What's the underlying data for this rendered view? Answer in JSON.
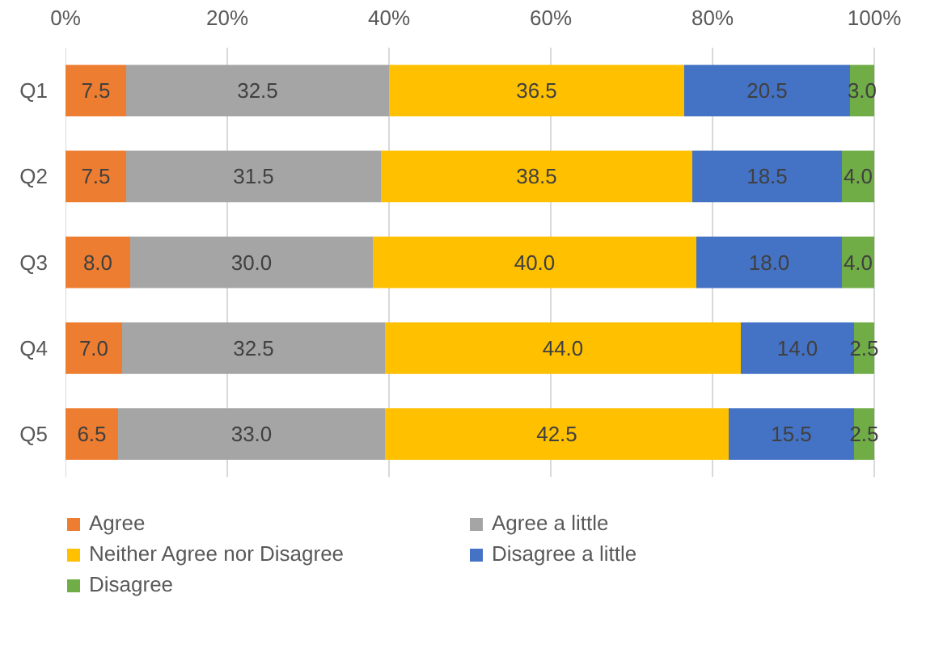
{
  "chart_data": {
    "type": "bar",
    "orientation": "horizontal",
    "stacked": true,
    "categories": [
      "Q1",
      "Q2",
      "Q3",
      "Q4",
      "Q5"
    ],
    "xlim": [
      0,
      100
    ],
    "xticks": [
      {
        "value": 0,
        "label": "0%"
      },
      {
        "value": 20,
        "label": "20%"
      },
      {
        "value": 40,
        "label": "40%"
      },
      {
        "value": 60,
        "label": "60%"
      },
      {
        "value": 80,
        "label": "80%"
      },
      {
        "value": 100,
        "label": "100%"
      }
    ],
    "grid": "x",
    "legend": "bottom",
    "series": [
      {
        "name": "Agree",
        "color": "#ed7d31",
        "values": [
          7.5,
          7.5,
          8.0,
          7.0,
          6.5
        ],
        "value_labels": [
          "7.5",
          "7.5",
          "8.0",
          "7.0",
          "6.5"
        ]
      },
      {
        "name": "Agree a little",
        "color": "#a5a5a5",
        "values": [
          32.5,
          31.5,
          30.0,
          32.5,
          33.0
        ],
        "value_labels": [
          "32.5",
          "31.5",
          "30.0",
          "32.5",
          "33.0"
        ]
      },
      {
        "name": "Neither Agree nor Disagree",
        "color": "#ffc000",
        "values": [
          36.5,
          38.5,
          40.0,
          44.0,
          42.5
        ],
        "value_labels": [
          "36.5",
          "38.5",
          "40.0",
          "44.0",
          "42.5"
        ]
      },
      {
        "name": "Disagree a little",
        "color": "#4472c4",
        "values": [
          20.5,
          18.5,
          18.0,
          14.0,
          15.5
        ],
        "value_labels": [
          "20.5",
          "18.5",
          "18.0",
          "14.0",
          "15.5"
        ]
      },
      {
        "name": "Disagree",
        "color": "#70ad47",
        "values": [
          3.0,
          4.0,
          4.0,
          2.5,
          2.5
        ],
        "value_labels": [
          "3.0",
          "4.0",
          "4.0",
          "2.5",
          "2.5"
        ]
      }
    ]
  }
}
